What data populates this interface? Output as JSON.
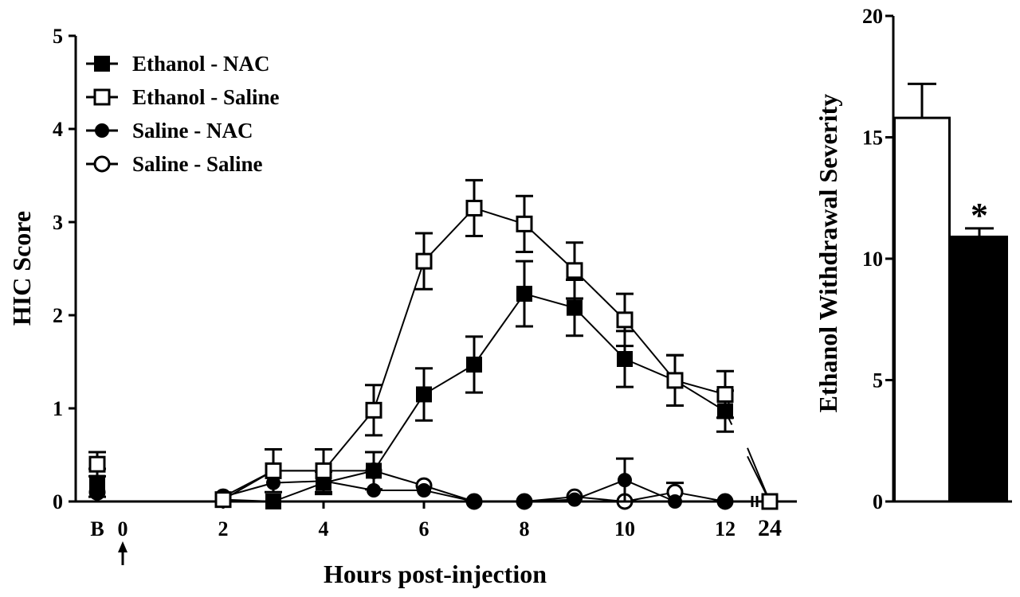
{
  "chart_data": [
    {
      "type": "line",
      "xlabel": "Hours post-injection",
      "ylabel": "HIC Score",
      "ylim": [
        0,
        5
      ],
      "yticks": [
        "0",
        "1",
        "2",
        "3",
        "4",
        "5"
      ],
      "xticks": [
        "B",
        "0",
        "2",
        "4",
        "6",
        "8",
        "10",
        "12",
        "24"
      ],
      "legend_position": "top-left",
      "series": [
        {
          "name": "Ethanol - NAC",
          "marker": "filled-square",
          "points": [
            {
              "x": "B",
              "y": 0.2,
              "err": 0.15
            },
            {
              "x": 2,
              "y": 0.02,
              "err": 0.0
            },
            {
              "x": 3,
              "y": 0.0,
              "err": 0.0
            },
            {
              "x": 4,
              "y": 0.2,
              "err": 0.12
            },
            {
              "x": 5,
              "y": 0.33,
              "err": 0.2
            },
            {
              "x": 6,
              "y": 1.15,
              "err": 0.28
            },
            {
              "x": 7,
              "y": 1.47,
              "err": 0.3
            },
            {
              "x": 8,
              "y": 2.23,
              "err": 0.35
            },
            {
              "x": 9,
              "y": 2.08,
              "err": 0.3
            },
            {
              "x": 10,
              "y": 1.53,
              "err": 0.3
            },
            {
              "x": 11,
              "y": 1.3,
              "err": 0.27
            },
            {
              "x": 12,
              "y": 0.97,
              "err": 0.22
            },
            {
              "x": 24,
              "y": 0.0,
              "err": 0.0
            }
          ]
        },
        {
          "name": "Ethanol - Saline",
          "marker": "open-square",
          "points": [
            {
              "x": "B",
              "y": 0.4,
              "err": 0.13
            },
            {
              "x": 2,
              "y": 0.02,
              "err": 0.0
            },
            {
              "x": 3,
              "y": 0.33,
              "err": 0.23
            },
            {
              "x": 4,
              "y": 0.33,
              "err": 0.23
            },
            {
              "x": 5,
              "y": 0.98,
              "err": 0.27
            },
            {
              "x": 6,
              "y": 2.58,
              "err": 0.3
            },
            {
              "x": 7,
              "y": 3.15,
              "err": 0.3
            },
            {
              "x": 8,
              "y": 2.98,
              "err": 0.3
            },
            {
              "x": 9,
              "y": 2.48,
              "err": 0.3
            },
            {
              "x": 10,
              "y": 1.95,
              "err": 0.28
            },
            {
              "x": 11,
              "y": 1.3,
              "err": 0.27
            },
            {
              "x": 12,
              "y": 1.15,
              "err": 0.25
            },
            {
              "x": 24,
              "y": 0.0,
              "err": 0.0
            }
          ]
        },
        {
          "name": "Saline -  NAC",
          "marker": "filled-circle",
          "points": [
            {
              "x": "B",
              "y": 0.1,
              "err": 0.0
            },
            {
              "x": 2,
              "y": 0.05,
              "err": 0.0
            },
            {
              "x": 3,
              "y": 0.2,
              "err": 0.0
            },
            {
              "x": 4,
              "y": 0.22,
              "err": 0.0
            },
            {
              "x": 5,
              "y": 0.12,
              "err": 0.0
            },
            {
              "x": 6,
              "y": 0.12,
              "err": 0.0
            },
            {
              "x": 7,
              "y": 0.0,
              "err": 0.0
            },
            {
              "x": 8,
              "y": 0.0,
              "err": 0.0
            },
            {
              "x": 9,
              "y": 0.02,
              "err": 0.0
            },
            {
              "x": 10,
              "y": 0.23,
              "err": 0.23
            },
            {
              "x": 11,
              "y": 0.0,
              "err": 0.0
            },
            {
              "x": 12,
              "y": 0.0,
              "err": 0.0
            },
            {
              "x": 24,
              "y": 0.0,
              "err": 0.0
            }
          ]
        },
        {
          "name": "Saline - Saline",
          "marker": "open-circle",
          "points": [
            {
              "x": "B",
              "y": 0.1,
              "err": 0.0
            },
            {
              "x": 2,
              "y": 0.05,
              "err": 0.0
            },
            {
              "x": 3,
              "y": 0.33,
              "err": 0.0
            },
            {
              "x": 4,
              "y": 0.33,
              "err": 0.0
            },
            {
              "x": 5,
              "y": 0.33,
              "err": 0.0
            },
            {
              "x": 6,
              "y": 0.17,
              "err": 0.0
            },
            {
              "x": 7,
              "y": 0.0,
              "err": 0.0
            },
            {
              "x": 8,
              "y": 0.0,
              "err": 0.0
            },
            {
              "x": 9,
              "y": 0.05,
              "err": 0.0
            },
            {
              "x": 10,
              "y": 0.0,
              "err": 0.0
            },
            {
              "x": 11,
              "y": 0.1,
              "err": 0.1
            },
            {
              "x": 12,
              "y": 0.0,
              "err": 0.0
            },
            {
              "x": 24,
              "y": 0.0,
              "err": 0.0
            }
          ]
        }
      ]
    },
    {
      "type": "bar",
      "ylabel": "Ethanol Withdrawal Severity",
      "ylim": [
        0,
        20
      ],
      "yticks": [
        "0",
        "5",
        "10",
        "15",
        "20"
      ],
      "bars": [
        {
          "value": 15.8,
          "err": 1.4,
          "fill": "#ffffff",
          "label": ""
        },
        {
          "value": 10.9,
          "err": 0.35,
          "fill": "#000000",
          "label": "*"
        }
      ]
    }
  ]
}
